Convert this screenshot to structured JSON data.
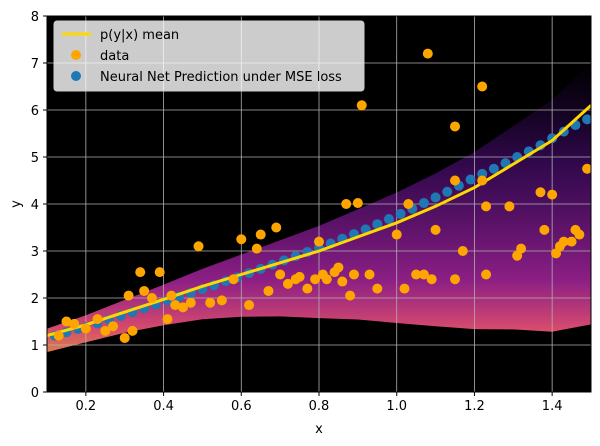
{
  "chart_data": {
    "type": "scatter",
    "title": "",
    "xlabel": "x",
    "ylabel": "y",
    "xlim": [
      0.1,
      1.5
    ],
    "ylim": [
      0,
      8
    ],
    "xticks": [
      0.2,
      0.4,
      0.6,
      0.8,
      1.0,
      1.2,
      1.4
    ],
    "xtick_labels": [
      "0.2",
      "0.4",
      "0.6",
      "0.8",
      "1.0",
      "1.2",
      "1.4"
    ],
    "yticks": [
      0,
      1,
      2,
      3,
      4,
      5,
      6,
      7,
      8
    ],
    "ytick_labels": [
      "0",
      "1",
      "2",
      "3",
      "4",
      "5",
      "6",
      "7",
      "8"
    ],
    "grid": true,
    "background": "density heatmap of p(y|x)",
    "colors": {
      "mean_line": "#ffd700",
      "data": "#ffa500",
      "prediction": "#1f77b4",
      "plot_bg": "#000000"
    },
    "legend": {
      "placement": "top-left",
      "entries": [
        {
          "label": "p(y|x) mean",
          "kind": "line"
        },
        {
          "label": "data",
          "kind": "data"
        },
        {
          "label": "Neural Net Prediction under MSE loss",
          "kind": "prediction"
        }
      ]
    },
    "series": [
      {
        "name": "p(y|x) mean",
        "kind": "line",
        "x": [
          0.1,
          0.2,
          0.3,
          0.4,
          0.5,
          0.6,
          0.7,
          0.8,
          0.9,
          1.0,
          1.1,
          1.2,
          1.3,
          1.4,
          1.5
        ],
        "y": [
          1.2,
          1.43,
          1.7,
          1.97,
          2.25,
          2.5,
          2.75,
          3.0,
          3.3,
          3.6,
          3.95,
          4.35,
          4.85,
          5.35,
          6.1
        ]
      },
      {
        "name": "data",
        "kind": "scatter",
        "x": [
          0.13,
          0.15,
          0.17,
          0.2,
          0.23,
          0.25,
          0.27,
          0.3,
          0.31,
          0.32,
          0.34,
          0.35,
          0.37,
          0.39,
          0.41,
          0.42,
          0.43,
          0.45,
          0.47,
          0.49,
          0.52,
          0.55,
          0.58,
          0.6,
          0.62,
          0.64,
          0.65,
          0.67,
          0.69,
          0.7,
          0.72,
          0.74,
          0.75,
          0.77,
          0.79,
          0.8,
          0.81,
          0.82,
          0.84,
          0.85,
          0.86,
          0.87,
          0.88,
          0.89,
          0.9,
          0.91,
          0.93,
          0.95,
          1.0,
          1.02,
          1.03,
          1.05,
          1.07,
          1.08,
          1.09,
          1.1,
          1.15,
          1.15,
          1.15,
          1.17,
          1.22,
          1.22,
          1.23,
          1.23,
          1.29,
          1.31,
          1.32,
          1.37,
          1.38,
          1.4,
          1.41,
          1.42,
          1.43,
          1.45,
          1.46,
          1.47,
          1.49
        ],
        "y": [
          1.2,
          1.5,
          1.45,
          1.35,
          1.55,
          1.3,
          1.4,
          1.15,
          2.05,
          1.3,
          2.55,
          2.15,
          2.0,
          2.55,
          1.55,
          2.05,
          1.85,
          1.8,
          1.9,
          3.1,
          1.9,
          1.95,
          2.4,
          3.25,
          1.85,
          3.05,
          3.35,
          2.15,
          3.5,
          2.5,
          2.3,
          2.4,
          2.45,
          2.2,
          2.4,
          3.2,
          2.5,
          2.4,
          2.55,
          2.65,
          2.35,
          4.0,
          2.05,
          2.5,
          4.02,
          6.1,
          2.5,
          2.2,
          3.35,
          2.2,
          4.0,
          2.5,
          2.5,
          7.2,
          2.4,
          3.45,
          2.4,
          4.5,
          5.65,
          3.0,
          4.5,
          6.5,
          3.95,
          2.5,
          3.95,
          2.9,
          3.05,
          4.25,
          3.45,
          4.2,
          2.95,
          3.1,
          3.2,
          3.2,
          3.45,
          3.35,
          4.75
        ]
      },
      {
        "name": "Neural Net Prediction under MSE loss",
        "kind": "prediction",
        "x": [
          0.12,
          0.15,
          0.18,
          0.2,
          0.23,
          0.26,
          0.29,
          0.32,
          0.35,
          0.38,
          0.41,
          0.44,
          0.47,
          0.5,
          0.53,
          0.56,
          0.59,
          0.62,
          0.65,
          0.68,
          0.71,
          0.74,
          0.77,
          0.8,
          0.83,
          0.86,
          0.89,
          0.92,
          0.95,
          0.98,
          1.01,
          1.04,
          1.07,
          1.1,
          1.13,
          1.16,
          1.19,
          1.22,
          1.25,
          1.28,
          1.31,
          1.34,
          1.37,
          1.4,
          1.43,
          1.46,
          1.49
        ],
        "y": [
          1.2,
          1.27,
          1.34,
          1.38,
          1.46,
          1.54,
          1.62,
          1.7,
          1.78,
          1.86,
          1.95,
          2.03,
          2.11,
          2.19,
          2.27,
          2.36,
          2.44,
          2.53,
          2.62,
          2.71,
          2.8,
          2.89,
          2.98,
          3.07,
          3.16,
          3.26,
          3.36,
          3.46,
          3.57,
          3.68,
          3.79,
          3.9,
          4.02,
          4.14,
          4.26,
          4.39,
          4.52,
          4.64,
          4.75,
          4.87,
          5.0,
          5.12,
          5.25,
          5.4,
          5.54,
          5.68,
          5.8
        ]
      }
    ]
  }
}
